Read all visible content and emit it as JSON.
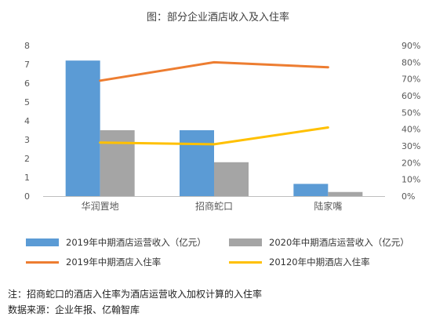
{
  "title": "图：部分企业酒店收入及入住率",
  "chart_data": {
    "type": "bar",
    "categories": [
      "华润置地",
      "招商蛇口",
      "陆家嘴"
    ],
    "bar_series": [
      {
        "name": "2019年中期酒店运营收入（亿元）",
        "color": "#5b9bd5",
        "values": [
          7.2,
          3.5,
          0.65
        ]
      },
      {
        "name": "2020年中期酒店运营收入（亿元）",
        "color": "#a5a5a5",
        "values": [
          3.5,
          1.8,
          0.22
        ]
      }
    ],
    "line_series": [
      {
        "name": "2019年中期酒店入住率",
        "color": "#ed7d31",
        "values": [
          0.69,
          0.8,
          0.77
        ]
      },
      {
        "name": "20120年中期酒店入住率",
        "color": "#ffc000",
        "values": [
          0.32,
          0.31,
          0.41
        ]
      }
    ],
    "y_left": {
      "min": 0,
      "max": 8,
      "ticks": [
        "0",
        "1",
        "2",
        "3",
        "4",
        "5",
        "6",
        "7",
        "8"
      ]
    },
    "y_right": {
      "min": 0,
      "max": 0.9,
      "ticks": [
        "0%",
        "10%",
        "20%",
        "30%",
        "40%",
        "50%",
        "60%",
        "70%",
        "80%",
        "90%"
      ]
    },
    "grid": false,
    "legend_position": "bottom"
  },
  "notes": {
    "note": "注：招商蛇口的酒店入住率为酒店运营收入加权计算的入住率",
    "source": "数据来源：企业年报、亿翰智库"
  }
}
